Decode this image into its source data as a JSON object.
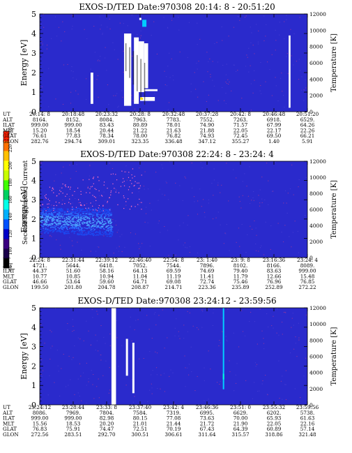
{
  "colorbar": {
    "label": "Second Harmonic Current",
    "ticks": [
      "240",
      "220",
      "200",
      "180",
      "160",
      "140",
      "120",
      "100",
      "80"
    ],
    "colors": [
      "#000000",
      "#1a004a",
      "#3a0080",
      "#0000c8",
      "#0050ff",
      "#00b0ff",
      "#00ffe8",
      "#00d060",
      "#40ff00",
      "#c8ff00",
      "#ffff00",
      "#ffc000",
      "#ff7000",
      "#ff2000"
    ],
    "background_color": "#2a2acc",
    "speckle_color": "#e04080"
  },
  "chart_data": [
    {
      "type": "heatmap",
      "title": "EXOS-D/TED  Date:970308  20:14: 8 - 20:51:20",
      "ylabel": "Energy [eV]",
      "y2label": "Temperature [K]",
      "ylim": [
        0,
        5
      ],
      "y2lim": [
        0,
        12000
      ],
      "yticks": [
        "0",
        "1",
        "2",
        "3",
        "4",
        "5"
      ],
      "y2ticks": [
        "0",
        "2000",
        "4000",
        "6000",
        "8000",
        "10000",
        "12000"
      ],
      "table_rows": [
        {
          "label": "UT",
          "values": [
            "20:14: 8",
            "20:18:48",
            "20:23:32",
            "20:28: 8",
            "20:32:48",
            "20:37:28",
            "20:42: 8",
            "20:46:48",
            "20:51:20"
          ]
        },
        {
          "label": "ALT",
          "values": [
            "8164.",
            "8152.",
            "8084.",
            "7963.",
            "7783.",
            "7552.",
            "7263.",
            "6918.",
            "6529."
          ]
        },
        {
          "label": "ILAT",
          "values": [
            "999.00",
            "999.00",
            "83.43",
            "80.89",
            "78.01",
            "74.90",
            "71.57",
            "67.99",
            "64.26"
          ]
        },
        {
          "label": "MLT",
          "values": [
            "15.20",
            "18.54",
            "20.44",
            "21.22",
            "21.63",
            "21.88",
            "22.05",
            "22.17",
            "22.26"
          ]
        },
        {
          "label": "GLAT",
          "values": [
            "76.61",
            "77.83",
            "78.34",
            "78.00",
            "76.82",
            "74.93",
            "72.45",
            "69.50",
            "66.21"
          ]
        },
        {
          "label": "GLON",
          "values": [
            "282.76",
            "294.74",
            "309.01",
            "323.35",
            "336.48",
            "347.12",
            "355.27",
            "1.40",
            "5.91"
          ]
        }
      ]
    },
    {
      "type": "heatmap",
      "title": "EXOS-D/TED   Date:970308   22:24: 8 - 23:24: 4",
      "ylabel": "Energy [eV]",
      "y2label": "Temperature [K]",
      "ylim": [
        0,
        5
      ],
      "y2lim": [
        0,
        12000
      ],
      "yticks": [
        "0",
        "1",
        "2",
        "3",
        "4",
        "5"
      ],
      "y2ticks": [
        "0",
        "2000",
        "4000",
        "6000",
        "8000",
        "10000",
        "12000"
      ],
      "table_rows": [
        {
          "label": "UT",
          "values": [
            "22:24: 8",
            "22:31:44",
            "22:39:12",
            "22:46:40",
            "22:54: 8",
            "23: 1:40",
            "23: 9: 8",
            "23:16:36",
            "23:24: 4"
          ]
        },
        {
          "label": "ALT",
          "values": [
            "4721.",
            "5644.",
            "6418.",
            "7052.",
            "7544.",
            "7896.",
            "8102.",
            "8166.",
            "8089."
          ]
        },
        {
          "label": "ILAT",
          "values": [
            "44.37",
            "51.60",
            "58.16",
            "64.13",
            "69.59",
            "74.69",
            "79.40",
            "83.63",
            "999.00"
          ]
        },
        {
          "label": "MLT",
          "values": [
            "10.77",
            "10.85",
            "10.94",
            "11.04",
            "11.19",
            "11.41",
            "11.79",
            "12.66",
            "15.48"
          ]
        },
        {
          "label": "GLAT",
          "values": [
            "46.66",
            "53.64",
            "59.60",
            "64.71",
            "69.08",
            "72.74",
            "75.46",
            "76.96",
            "76.85"
          ]
        },
        {
          "label": "GLON",
          "values": [
            "199.50",
            "201.80",
            "204.78",
            "208.87",
            "214.71",
            "223.36",
            "235.89",
            "252.89",
            "272.22"
          ]
        }
      ]
    },
    {
      "type": "heatmap",
      "title": "EXOS-D/TED  Date:970308  23:24:12 - 23:59:56",
      "ylabel": "Energy [eV]",
      "y2label": "Temperature [K]",
      "ylim": [
        0,
        5
      ],
      "y2lim": [
        0,
        12000
      ],
      "yticks": [
        "0",
        "1",
        "2",
        "3",
        "4",
        "5"
      ],
      "y2ticks": [
        "0",
        "2000",
        "4000",
        "6000",
        "8000",
        "10000",
        "12000"
      ],
      "table_rows": [
        {
          "label": "UT",
          "values": [
            "23:24:12",
            "23:28:44",
            "23:33: 8",
            "23:37:40",
            "23:42: 4",
            "23:46:36",
            "23:51: 0",
            "23:55:32",
            "23:59:56"
          ]
        },
        {
          "label": "ALT",
          "values": [
            "8086.",
            "7969.",
            "7804.",
            "7584.",
            "7319.",
            "6995.",
            "6629.",
            "6202.",
            "5738."
          ]
        },
        {
          "label": "ILAT",
          "values": [
            "999.00",
            "999.00",
            "82.98",
            "80.15",
            "77.08",
            "73.63",
            "70.00",
            "65.93",
            "61.63"
          ]
        },
        {
          "label": "MLT",
          "values": [
            "15.56",
            "18.53",
            "20.20",
            "21.01",
            "21.44",
            "21.72",
            "21.90",
            "22.05",
            "22.16"
          ]
        },
        {
          "label": "GLAT",
          "values": [
            "76.83",
            "75.91",
            "74.47",
            "72.51",
            "70.19",
            "67.43",
            "64.39",
            "60.89",
            "57.14"
          ]
        },
        {
          "label": "GLON",
          "values": [
            "272.56",
            "283.51",
            "292.70",
            "300.51",
            "306.61",
            "311.64",
            "315.57",
            "318.86",
            "321.48"
          ]
        }
      ]
    }
  ]
}
